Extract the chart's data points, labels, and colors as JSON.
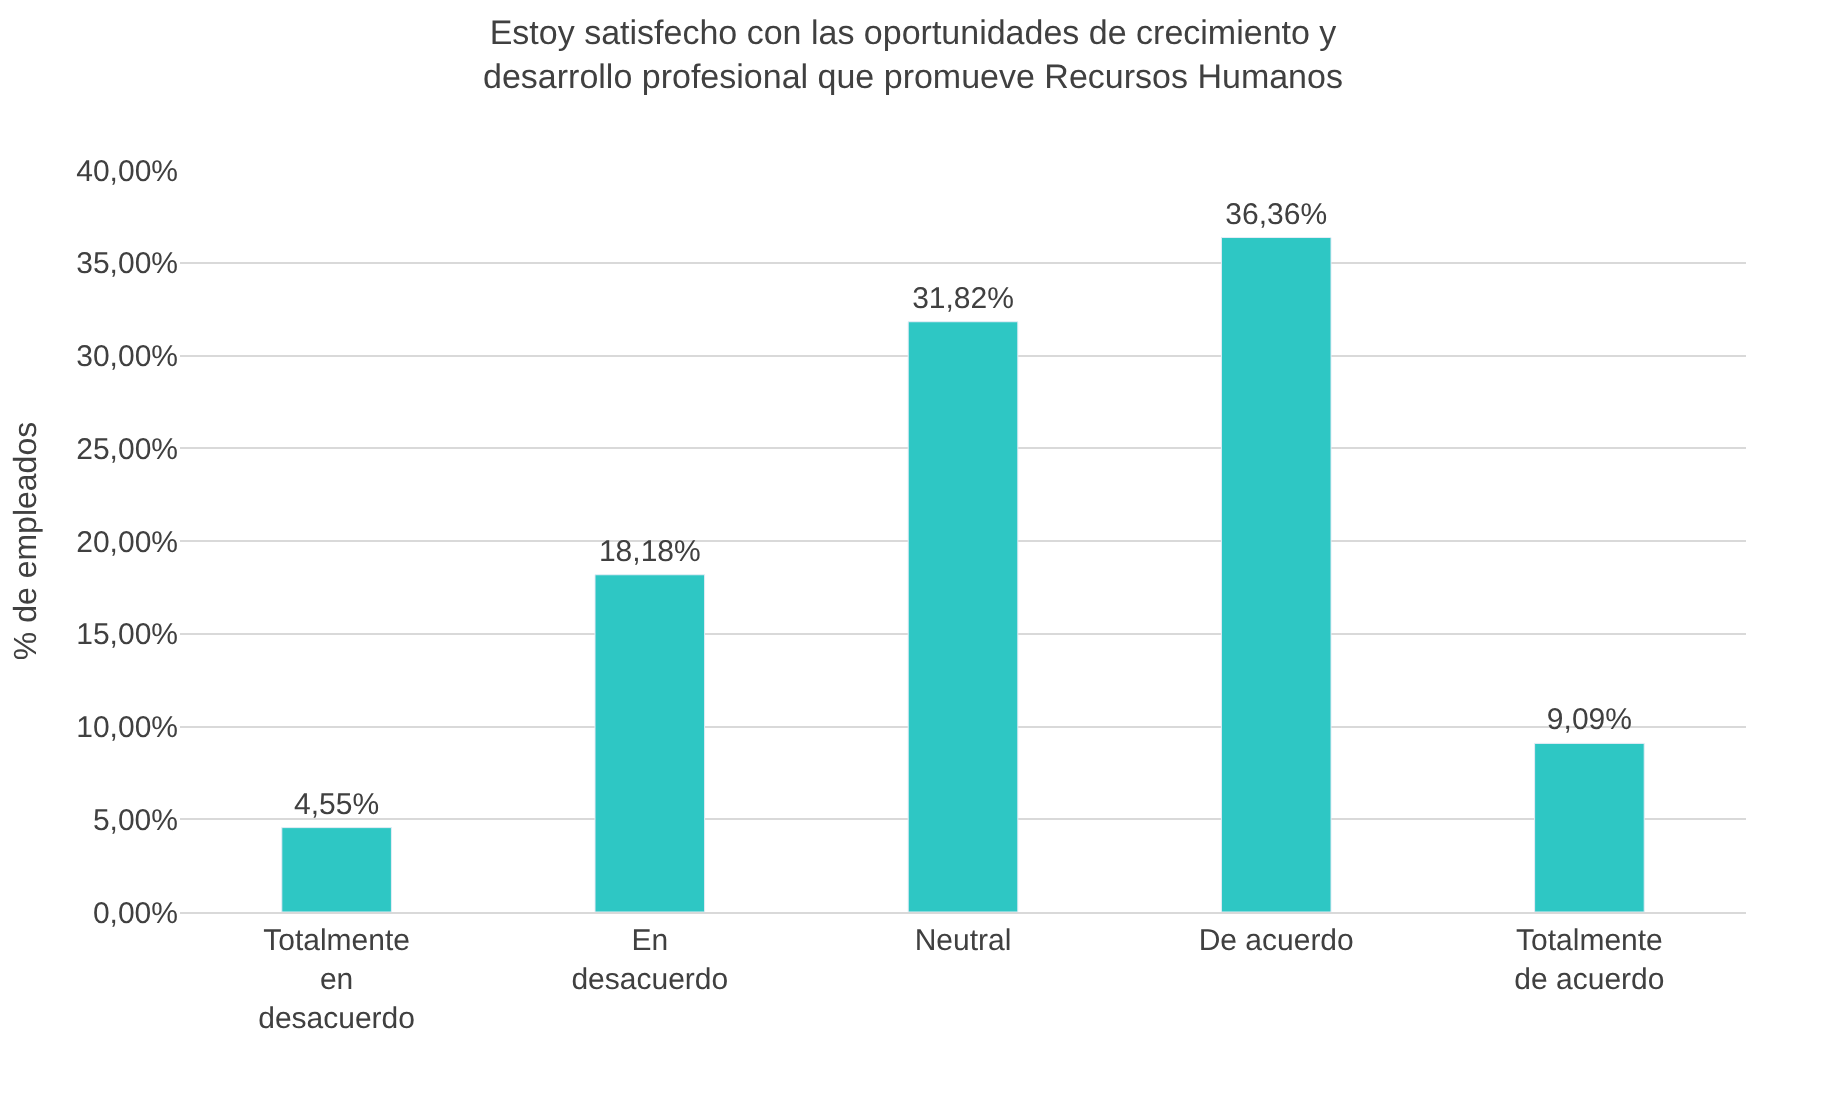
{
  "chart_data": {
    "type": "bar",
    "title": "Estoy satisfecho con las oportunidades de crecimiento y desarrollo profesional que promueve Recursos Humanos",
    "ylabel": "% de empleados",
    "categories": [
      "Totalmente en desacuerdo",
      "En desacuerdo",
      "Neutral",
      "De acuerdo",
      "Totalmente de acuerdo"
    ],
    "values": [
      4.55,
      18.18,
      31.82,
      36.36,
      9.09
    ],
    "value_labels": [
      "4,55%",
      "18,18%",
      "31,82%",
      "36,36%",
      "9,09%"
    ],
    "color": "#2ec7c4",
    "ylim": [
      0,
      40
    ],
    "yticks": [
      {
        "value": 0,
        "label": "0,00%"
      },
      {
        "value": 5,
        "label": "5,00%"
      },
      {
        "value": 10,
        "label": "10,00%"
      },
      {
        "value": 15,
        "label": "15,00%"
      },
      {
        "value": 20,
        "label": "20,00%"
      },
      {
        "value": 25,
        "label": "25,00%"
      },
      {
        "value": 30,
        "label": "30,00%"
      },
      {
        "value": 35,
        "label": "35,00%"
      },
      {
        "value": 40,
        "label": "40,00%"
      }
    ],
    "grid": "y",
    "legend": false
  }
}
